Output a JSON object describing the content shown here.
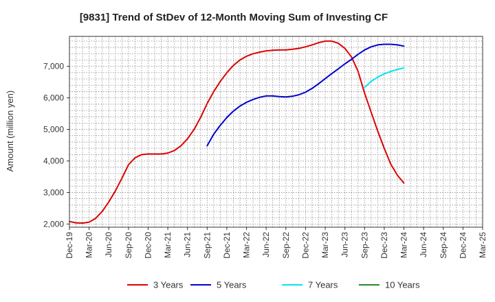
{
  "chart_data": {
    "type": "line",
    "title": "[9831]  Trend of StDev of 12-Month Moving Sum of Investing CF",
    "xlabel": "",
    "ylabel": "Amount (million yen)",
    "ylim": [
      1900,
      7950
    ],
    "yticks": [
      2000,
      3000,
      4000,
      5000,
      6000,
      7000
    ],
    "ytick_labels": [
      "2,000",
      "3,000",
      "4,000",
      "5,000",
      "6,000",
      "7,000"
    ],
    "x_range": [
      "Dec-19",
      "Mar-25"
    ],
    "xtick_labels": [
      "Dec-19",
      "Mar-20",
      "Jun-20",
      "Sep-20",
      "Dec-20",
      "Mar-21",
      "Jun-21",
      "Sep-21",
      "Dec-21",
      "Mar-22",
      "Jun-22",
      "Sep-22",
      "Dec-22",
      "Mar-23",
      "Jun-23",
      "Sep-23",
      "Dec-23",
      "Mar-24",
      "Jun-24",
      "Sep-24",
      "Dec-24",
      "Mar-25"
    ],
    "grid": true,
    "legend_position": "bottom",
    "series": [
      {
        "name": "3 Years",
        "color": "#dd0000",
        "x": [
          "Dec-19",
          "Jan-20",
          "Feb-20",
          "Mar-20",
          "Apr-20",
          "May-20",
          "Jun-20",
          "Jul-20",
          "Aug-20",
          "Sep-20",
          "Oct-20",
          "Nov-20",
          "Dec-20",
          "Jan-21",
          "Feb-21",
          "Mar-21",
          "Apr-21",
          "May-21",
          "Jun-21",
          "Jul-21",
          "Aug-21",
          "Sep-21",
          "Oct-21",
          "Nov-21",
          "Dec-21",
          "Jan-22",
          "Feb-22",
          "Mar-22",
          "Apr-22",
          "May-22",
          "Jun-22",
          "Jul-22",
          "Aug-22",
          "Sep-22",
          "Oct-22",
          "Nov-22",
          "Dec-22",
          "Jan-23",
          "Feb-23",
          "Mar-23",
          "Apr-23",
          "May-23",
          "Jun-23",
          "Jul-23",
          "Aug-23",
          "Sep-23",
          "Oct-23",
          "Nov-23",
          "Dec-23",
          "Jan-24",
          "Feb-24",
          "Mar-24"
        ],
        "y": [
          2080,
          2040,
          2030,
          2060,
          2180,
          2400,
          2700,
          3050,
          3450,
          3880,
          4100,
          4200,
          4220,
          4220,
          4220,
          4250,
          4330,
          4480,
          4700,
          5000,
          5380,
          5820,
          6200,
          6520,
          6800,
          7030,
          7200,
          7320,
          7400,
          7450,
          7490,
          7510,
          7520,
          7520,
          7540,
          7570,
          7620,
          7680,
          7750,
          7800,
          7800,
          7730,
          7570,
          7300,
          6850,
          6150,
          5550,
          4950,
          4400,
          3900,
          3550,
          3300
        ]
      },
      {
        "name": "5 Years",
        "color": "#0000cc",
        "x": [
          "Sep-21",
          "Oct-21",
          "Nov-21",
          "Dec-21",
          "Jan-22",
          "Feb-22",
          "Mar-22",
          "Apr-22",
          "May-22",
          "Jun-22",
          "Jul-22",
          "Aug-22",
          "Sep-22",
          "Oct-22",
          "Nov-22",
          "Dec-22",
          "Jan-23",
          "Feb-23",
          "Mar-23",
          "Apr-23",
          "May-23",
          "Jun-23",
          "Jul-23",
          "Aug-23",
          "Sep-23",
          "Oct-23",
          "Nov-23",
          "Dec-23",
          "Jan-24",
          "Feb-24",
          "Mar-24"
        ],
        "y": [
          4480,
          4850,
          5130,
          5380,
          5580,
          5740,
          5860,
          5950,
          6020,
          6060,
          6060,
          6040,
          6030,
          6050,
          6100,
          6180,
          6300,
          6450,
          6610,
          6770,
          6920,
          7080,
          7220,
          7380,
          7520,
          7620,
          7680,
          7700,
          7700,
          7680,
          7640
        ]
      },
      {
        "name": "7 Years",
        "color": "#00e5ee",
        "x": [
          "Sep-23",
          "Oct-23",
          "Nov-23",
          "Dec-23",
          "Jan-24",
          "Feb-24",
          "Mar-24"
        ],
        "y": [
          6330,
          6520,
          6660,
          6760,
          6840,
          6900,
          6950
        ]
      },
      {
        "name": "10 Years",
        "color": "#228b22",
        "x": [],
        "y": []
      }
    ]
  }
}
